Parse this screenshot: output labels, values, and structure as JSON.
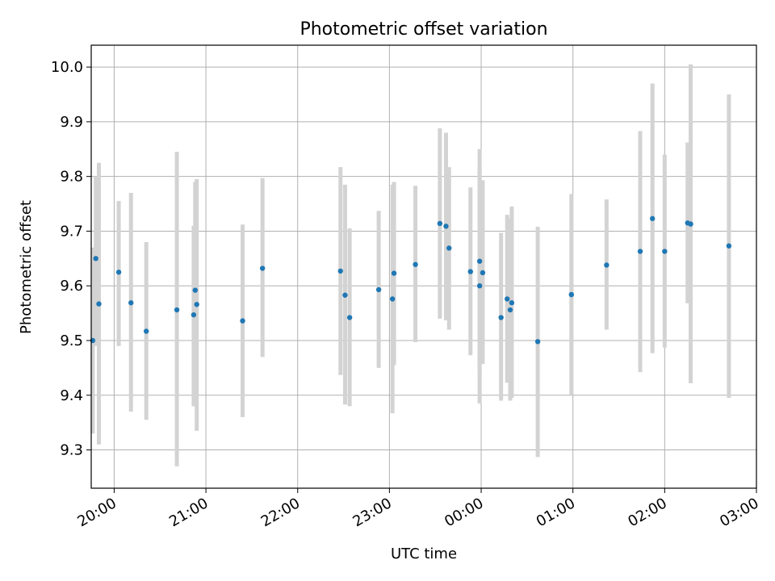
{
  "chart_data": {
    "type": "scatter",
    "title": "Photometric offset variation",
    "xlabel": "UTC time",
    "ylabel": "Photometric offset",
    "x_unit": "UTC time (hh:mm)",
    "x_ticks": [
      "20:00",
      "21:00",
      "22:00",
      "23:00",
      "00:00",
      "01:00",
      "02:00",
      "03:00"
    ],
    "y_ticks": [
      "9.3",
      "9.4",
      "9.5",
      "9.6",
      "9.7",
      "9.8",
      "9.9",
      "10.0"
    ],
    "xlim": [
      "19:45",
      "03:00"
    ],
    "ylim": [
      9.23,
      10.04
    ],
    "grid": true,
    "point_color": "#1f77b4",
    "errorbar_color": "#d3d3d3",
    "series": [
      {
        "points": [
          {
            "t": "19:46",
            "y": 9.5,
            "lo": 9.33,
            "hi": 9.67
          },
          {
            "t": "19:48",
            "y": 9.65,
            "lo": 9.49,
            "hi": 9.8
          },
          {
            "t": "19:50",
            "y": 9.567,
            "lo": 9.31,
            "hi": 9.825
          },
          {
            "t": "20:03",
            "y": 9.625,
            "lo": 9.49,
            "hi": 9.755
          },
          {
            "t": "20:11",
            "y": 9.569,
            "lo": 9.37,
            "hi": 9.77
          },
          {
            "t": "20:21",
            "y": 9.517,
            "lo": 9.355,
            "hi": 9.68
          },
          {
            "t": "20:41",
            "y": 9.556,
            "lo": 9.27,
            "hi": 9.845
          },
          {
            "t": "20:52",
            "y": 9.547,
            "lo": 9.38,
            "hi": 9.71
          },
          {
            "t": "20:53",
            "y": 9.592,
            "lo": 9.39,
            "hi": 9.79
          },
          {
            "t": "20:54",
            "y": 9.566,
            "lo": 9.335,
            "hi": 9.795
          },
          {
            "t": "21:24",
            "y": 9.536,
            "lo": 9.36,
            "hi": 9.712
          },
          {
            "t": "21:37",
            "y": 9.632,
            "lo": 9.47,
            "hi": 9.797
          },
          {
            "t": "22:28",
            "y": 9.627,
            "lo": 9.437,
            "hi": 9.817
          },
          {
            "t": "22:31",
            "y": 9.583,
            "lo": 9.383,
            "hi": 9.785
          },
          {
            "t": "22:34",
            "y": 9.542,
            "lo": 9.38,
            "hi": 9.705
          },
          {
            "t": "22:53",
            "y": 9.593,
            "lo": 9.45,
            "hi": 9.737
          },
          {
            "t": "23:02",
            "y": 9.576,
            "lo": 9.367,
            "hi": 9.785
          },
          {
            "t": "23:03",
            "y": 9.623,
            "lo": 9.455,
            "hi": 9.79
          },
          {
            "t": "23:17",
            "y": 9.639,
            "lo": 9.497,
            "hi": 9.783
          },
          {
            "t": "23:33",
            "y": 9.714,
            "lo": 9.54,
            "hi": 9.888
          },
          {
            "t": "23:37",
            "y": 9.709,
            "lo": 9.537,
            "hi": 9.88
          },
          {
            "t": "23:39",
            "y": 9.669,
            "lo": 9.52,
            "hi": 9.817
          },
          {
            "t": "23:53",
            "y": 9.626,
            "lo": 9.473,
            "hi": 9.78
          },
          {
            "t": "23:59",
            "y": 9.645,
            "lo": 9.44,
            "hi": 9.85
          },
          {
            "t": "23:59",
            "y": 9.6,
            "lo": 9.385,
            "hi": 9.815
          },
          {
            "t": "00:01",
            "y": 9.624,
            "lo": 9.457,
            "hi": 9.793
          },
          {
            "t": "00:13",
            "y": 9.542,
            "lo": 9.39,
            "hi": 9.697
          },
          {
            "t": "00:17",
            "y": 9.576,
            "lo": 9.423,
            "hi": 9.73
          },
          {
            "t": "00:19",
            "y": 9.556,
            "lo": 9.39,
            "hi": 9.723
          },
          {
            "t": "00:20",
            "y": 9.569,
            "lo": 9.395,
            "hi": 9.745
          },
          {
            "t": "00:37",
            "y": 9.498,
            "lo": 9.287,
            "hi": 9.708
          },
          {
            "t": "00:59",
            "y": 9.584,
            "lo": 9.4,
            "hi": 9.768
          },
          {
            "t": "01:22",
            "y": 9.638,
            "lo": 9.52,
            "hi": 9.758
          },
          {
            "t": "01:44",
            "y": 9.663,
            "lo": 9.442,
            "hi": 9.883
          },
          {
            "t": "01:52",
            "y": 9.723,
            "lo": 9.477,
            "hi": 9.97
          },
          {
            "t": "02:00",
            "y": 9.663,
            "lo": 9.487,
            "hi": 9.84
          },
          {
            "t": "02:15",
            "y": 9.715,
            "lo": 9.568,
            "hi": 9.862
          },
          {
            "t": "02:17",
            "y": 9.713,
            "lo": 9.422,
            "hi": 10.005
          },
          {
            "t": "02:42",
            "y": 9.673,
            "lo": 9.395,
            "hi": 9.95
          }
        ]
      }
    ]
  }
}
